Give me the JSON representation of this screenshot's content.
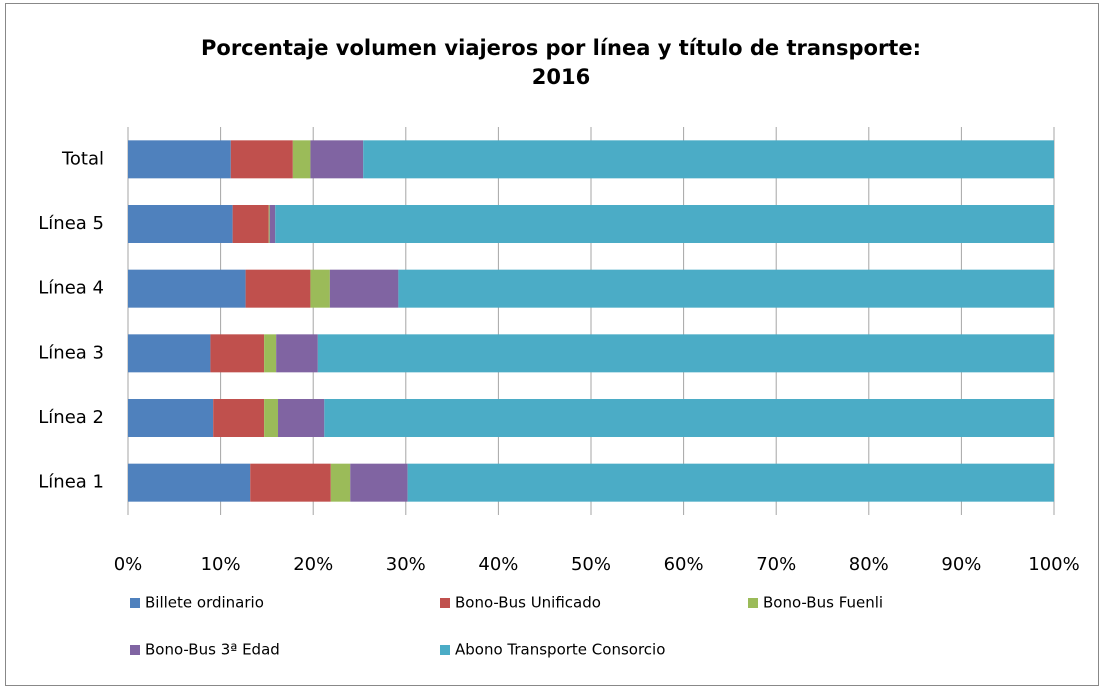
{
  "chart_data": {
    "type": "stacked_bar_horizontal",
    "title": [
      "Porcentaje volumen viajeros por línea y título de transporte:",
      "2016"
    ],
    "categories": [
      "Línea 1",
      "Línea 2",
      "Línea 3",
      "Línea 4",
      "Línea 5",
      "Total"
    ],
    "series": [
      {
        "name": "Billete ordinario",
        "color": "#4f81bd",
        "values": [
          13.2,
          9.2,
          8.9,
          12.7,
          11.3,
          11.1
        ]
      },
      {
        "name": "Bono-Bus Unificado",
        "color": "#c0504d",
        "values": [
          8.7,
          5.5,
          5.8,
          7.0,
          3.9,
          6.7
        ]
      },
      {
        "name": "Bono-Bus Fuenli",
        "color": "#9bbb59",
        "values": [
          2.1,
          1.5,
          1.3,
          2.1,
          0.1,
          1.9
        ]
      },
      {
        "name": "Bono-Bus 3ª Edad",
        "color": "#8064a2",
        "values": [
          6.2,
          5.0,
          4.5,
          7.4,
          0.6,
          5.7
        ]
      },
      {
        "name": "Abono Transporte Consorcio",
        "color": "#4bacc6",
        "values": [
          69.8,
          78.8,
          79.5,
          70.8,
          84.1,
          74.6
        ]
      }
    ],
    "xlim": [
      0,
      100
    ],
    "xticks": [
      {
        "value": 0,
        "label": "0%"
      },
      {
        "value": 10,
        "label": "10%"
      },
      {
        "value": 20,
        "label": "20%"
      },
      {
        "value": 30,
        "label": "30%"
      },
      {
        "value": 40,
        "label": "40%"
      },
      {
        "value": 50,
        "label": "50%"
      },
      {
        "value": 60,
        "label": "60%"
      },
      {
        "value": 70,
        "label": "70%"
      },
      {
        "value": 80,
        "label": "80%"
      },
      {
        "value": 90,
        "label": "90%"
      },
      {
        "value": 100,
        "label": "100%"
      }
    ],
    "grid": true,
    "legend": "bottom"
  }
}
